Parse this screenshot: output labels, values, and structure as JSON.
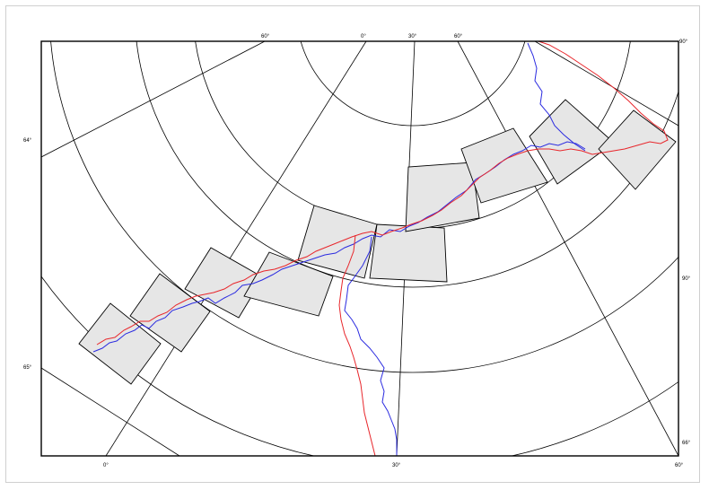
{
  "map": {
    "tick_labels": {
      "top": [
        "60°",
        "0°",
        "30°",
        "60°",
        "90°"
      ],
      "left": [
        "64°",
        "65°"
      ],
      "right": [
        "90°",
        "66°"
      ],
      "bottom": [
        "0°",
        "30°",
        "60°"
      ]
    },
    "colors": {
      "track_red": "#e8262b",
      "track_blue": "#2b2be0",
      "panel_fill": "#e6e6e6",
      "grid": "#000000"
    },
    "panel_count": 13,
    "track_series": [
      "red",
      "blue"
    ]
  }
}
